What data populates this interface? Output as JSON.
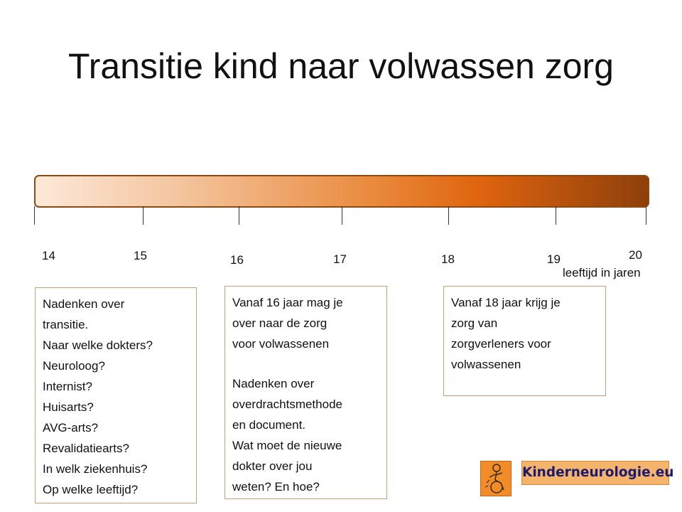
{
  "title": "Transitie kind naar volwassen zorg",
  "timeline": {
    "ticks": [
      "14",
      "15",
      "16",
      "17",
      "18",
      "19",
      "20"
    ],
    "axis_unit": "leeftijd in jaren",
    "gradient_colors": [
      "#fde9d9",
      "#e0650f",
      "#8e3f0b"
    ]
  },
  "boxes": [
    {
      "age": "14",
      "lines": [
        "Nadenken over",
        "transitie.",
        "Naar welke dokters?",
        "Neuroloog?",
        "Internist?",
        "Huisarts?",
        "AVG-arts?",
        "Revalidatiearts?",
        "In welk ziekenhuis?",
        "Op welke leeftijd?"
      ]
    },
    {
      "age": "16",
      "lines": [
        "Vanaf 16 jaar mag je",
        "over naar de zorg",
        "voor volwassenen",
        "",
        "Nadenken over",
        "overdrachtsmethode",
        "en document.",
        "Wat moet de nieuwe",
        "dokter over jou",
        "weten? En hoe?"
      ]
    },
    {
      "age": "18",
      "lines": [
        "Vanaf 18 jaar krijg je",
        "zorg van",
        "zorgverleners voor",
        "volwassenen"
      ]
    }
  ],
  "logo": {
    "text": "Kinderneurologie.eu",
    "icon": "child-wheelchair-icon",
    "color": "#f28c28"
  }
}
